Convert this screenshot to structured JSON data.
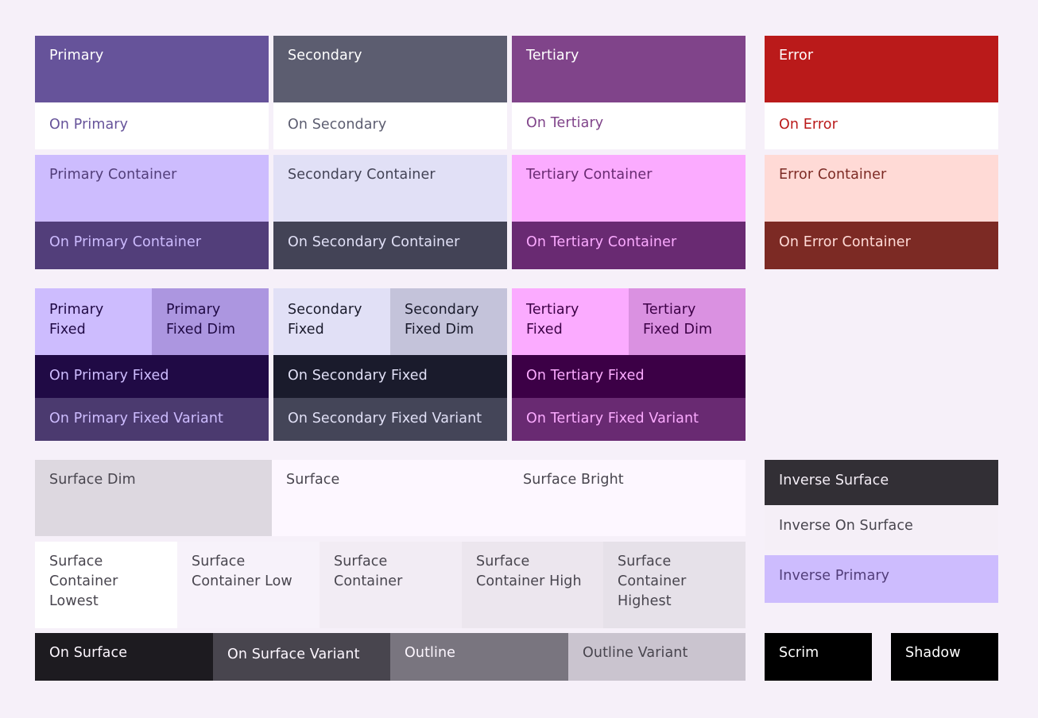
{
  "colors": {
    "primary": "#66539a",
    "on_primary": "#ffffff",
    "primary_container": "#cdbcfe",
    "on_primary_container": "#523e7a",
    "secondary": "#5c5d70",
    "on_secondary": "#ffffff",
    "secondary_container": "#e1e0f6",
    "on_secondary_container": "#434356",
    "tertiary": "#80448a",
    "on_tertiary": "#ffffff",
    "tertiary_container": "#fbabff",
    "on_tertiary_container": "#692a72",
    "error": "#ba1a1a",
    "on_error": "#ffffff",
    "error_container": "#ffdad6",
    "on_error_container": "#7c2a24",
    "primary_fixed": "#cdbcfe",
    "primary_fixed_dim": "#ac96e0",
    "on_primary_fixed": "#200a45",
    "on_primary_fixed_variant": "#4b3a6f",
    "secondary_fixed": "#e1e0f6",
    "secondary_fixed_dim": "#c4c3da",
    "on_secondary_fixed": "#1a1b2c",
    "on_secondary_fixed_variant": "#444558",
    "tertiary_fixed": "#fbabff",
    "tertiary_fixed_dim": "#da91e1",
    "on_tertiary_fixed": "#3c0046",
    "on_tertiary_fixed_variant": "#692a72",
    "surface_dim": "#ddd8e0",
    "surface": "#fdf7ff",
    "surface_bright": "#fdf7ff",
    "surface_container_lowest": "#ffffff",
    "surface_container_low": "#f7f2fa",
    "surface_container": "#f2ecf4",
    "surface_container_high": "#ece6ee",
    "surface_container_highest": "#e6e1e9",
    "on_surface": "#1d1b20",
    "on_surface_variant": "#48454e",
    "outline": "#79757f",
    "outline_variant": "#cac4cf",
    "inverse_surface": "#322f35",
    "inverse_on_surface": "#f5eff7",
    "inverse_primary": "#cdbcfe",
    "scrim": "#000000",
    "shadow": "#000000"
  },
  "labels": {
    "primary": "Primary",
    "on_primary": "On Primary",
    "primary_container": "Primary Container",
    "on_primary_container": "On Primary Container",
    "secondary": "Secondary",
    "on_secondary": "On Secondary",
    "secondary_container": "Secondary Container",
    "on_secondary_container": "On Secondary Container",
    "tertiary": "Tertiary",
    "on_tertiary": "On Tertiary",
    "tertiary_container": "Tertiary Container",
    "on_tertiary_container": "On Tertiary Container",
    "error": "Error",
    "on_error": "On Error",
    "error_container": "Error Container",
    "on_error_container": "On Error Container",
    "primary_fixed": "Primary Fixed",
    "primary_fixed_dim": "Primary Fixed Dim",
    "on_primary_fixed": "On Primary Fixed",
    "on_primary_fixed_variant": "On Primary Fixed Variant",
    "secondary_fixed": "Secondary Fixed",
    "secondary_fixed_dim": "Secondary Fixed Dim",
    "on_secondary_fixed": "On Secondary Fixed",
    "on_secondary_fixed_variant": "On Secondary Fixed Variant",
    "tertiary_fixed": "Tertiary Fixed",
    "tertiary_fixed_dim": "Tertiary Fixed Dim",
    "on_tertiary_fixed": "On Tertiary Fixed",
    "on_tertiary_fixed_variant": "On Tertiary Fixed Variant",
    "surface_dim": "Surface Dim",
    "surface": "Surface",
    "surface_bright": "Surface Bright",
    "surface_container_lowest": "Surface Container Lowest",
    "surface_container_low": "Surface Container Low",
    "surface_container": "Surface Container",
    "surface_container_high": "Surface Container High",
    "surface_container_highest": "Surface Container Highest",
    "on_surface": "On Surface",
    "on_surface_variant": "On Surface Variant",
    "outline": "Outline",
    "outline_variant": "Outline Variant",
    "inverse_surface": "Inverse Surface",
    "inverse_on_surface": "Inverse On Surface",
    "inverse_primary": "Inverse Primary",
    "scrim": "Scrim",
    "shadow": "Shadow"
  }
}
